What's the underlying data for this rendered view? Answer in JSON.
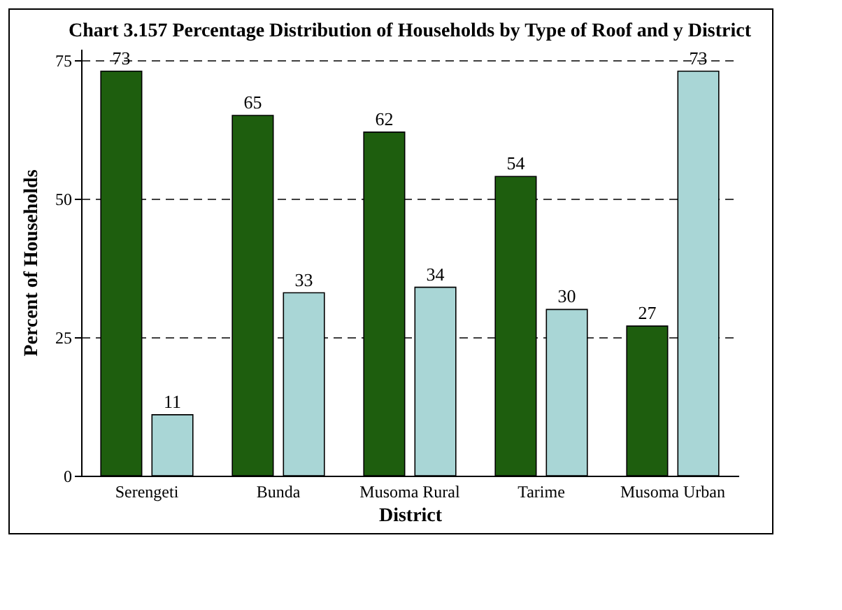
{
  "chart_data": {
    "type": "bar",
    "title": "Chart 3.157 Percentage Distribution of Households by\nType of Roof and y District",
    "xlabel": "District",
    "ylabel": "Percent of Households",
    "categories": [
      "Serengeti",
      "Bunda",
      "Musoma Rural",
      "Tarime",
      "Musoma Urban"
    ],
    "series": [
      {
        "color": "#1e5e0e",
        "values": [
          73,
          65,
          62,
          54,
          27
        ]
      },
      {
        "color": "#a9d6d6",
        "values": [
          11,
          33,
          34,
          30,
          73
        ]
      }
    ],
    "ylim": [
      0,
      77
    ],
    "yticks": [
      0,
      25,
      50,
      75
    ],
    "grid": "y",
    "data_labels": true
  }
}
